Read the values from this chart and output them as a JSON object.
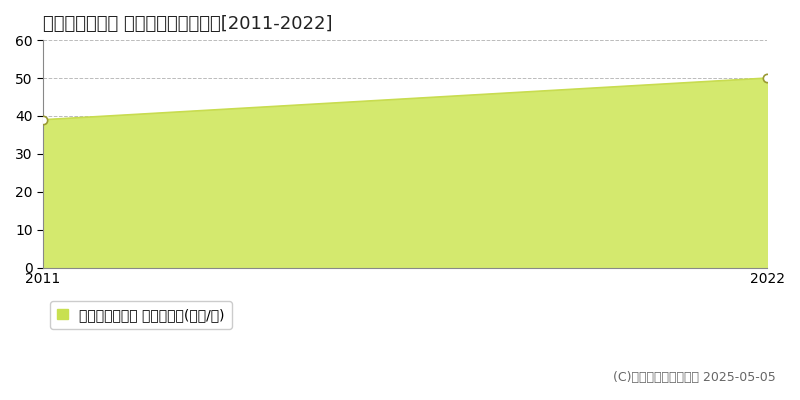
{
  "title": "諫早市西小路町 マンション価格推移[2011-2022]",
  "years": [
    2011,
    2022
  ],
  "values": [
    39,
    50
  ],
  "fill_color": "#d4e96e",
  "fill_alpha": 1.0,
  "line_color": "#c8dc50",
  "line_width": 1.2,
  "marker_color": "white",
  "marker_edge_color": "#999933",
  "ylim": [
    0,
    60
  ],
  "yticks": [
    0,
    10,
    20,
    30,
    40,
    50,
    60
  ],
  "grid_color": "#bbbbbb",
  "grid_linestyle": "--",
  "grid_linewidth": 0.7,
  "background_color": "#ffffff",
  "legend_label": "マンション価格 平均坪単価(万円/坪)",
  "legend_marker_color": "#c8e050",
  "copyright_text": "(C)土地価格ドットコム 2025-05-05",
  "title_fontsize": 13,
  "tick_fontsize": 10,
  "legend_fontsize": 10,
  "copyright_fontsize": 9
}
